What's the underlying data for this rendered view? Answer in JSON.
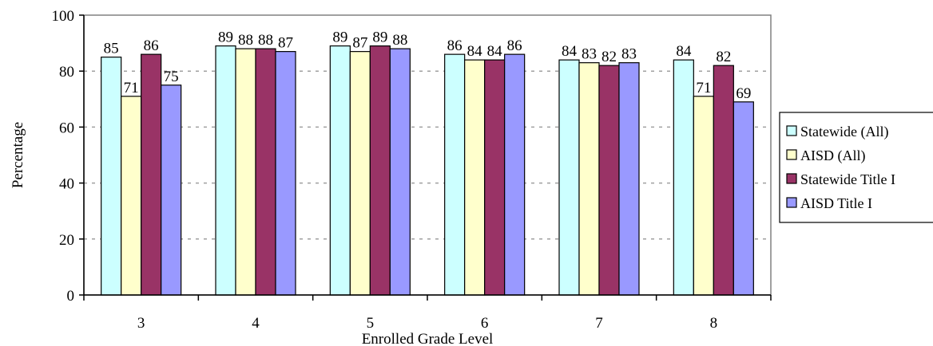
{
  "chart_data": {
    "type": "bar",
    "categories": [
      "3",
      "4",
      "5",
      "6",
      "7",
      "8"
    ],
    "series": [
      {
        "name": "Statewide (All)",
        "values": [
          85,
          89,
          89,
          86,
          84,
          84
        ],
        "color": "#CCFFFF"
      },
      {
        "name": "AISD (All)",
        "values": [
          71,
          88,
          87,
          84,
          83,
          71
        ],
        "color": "#FFFFCC"
      },
      {
        "name": "Statewide Title I",
        "values": [
          86,
          88,
          89,
          84,
          82,
          82
        ],
        "color": "#993366"
      },
      {
        "name": "AISD Title I",
        "values": [
          75,
          87,
          88,
          86,
          83,
          69
        ],
        "color": "#9999FF"
      }
    ],
    "xlabel": "Enrolled Grade Level",
    "ylabel": "Percentage",
    "ylim": [
      0,
      100
    ],
    "yticks": [
      "0",
      "20",
      "40",
      "60",
      "80",
      "100"
    ],
    "grid": true,
    "legend": "right"
  }
}
